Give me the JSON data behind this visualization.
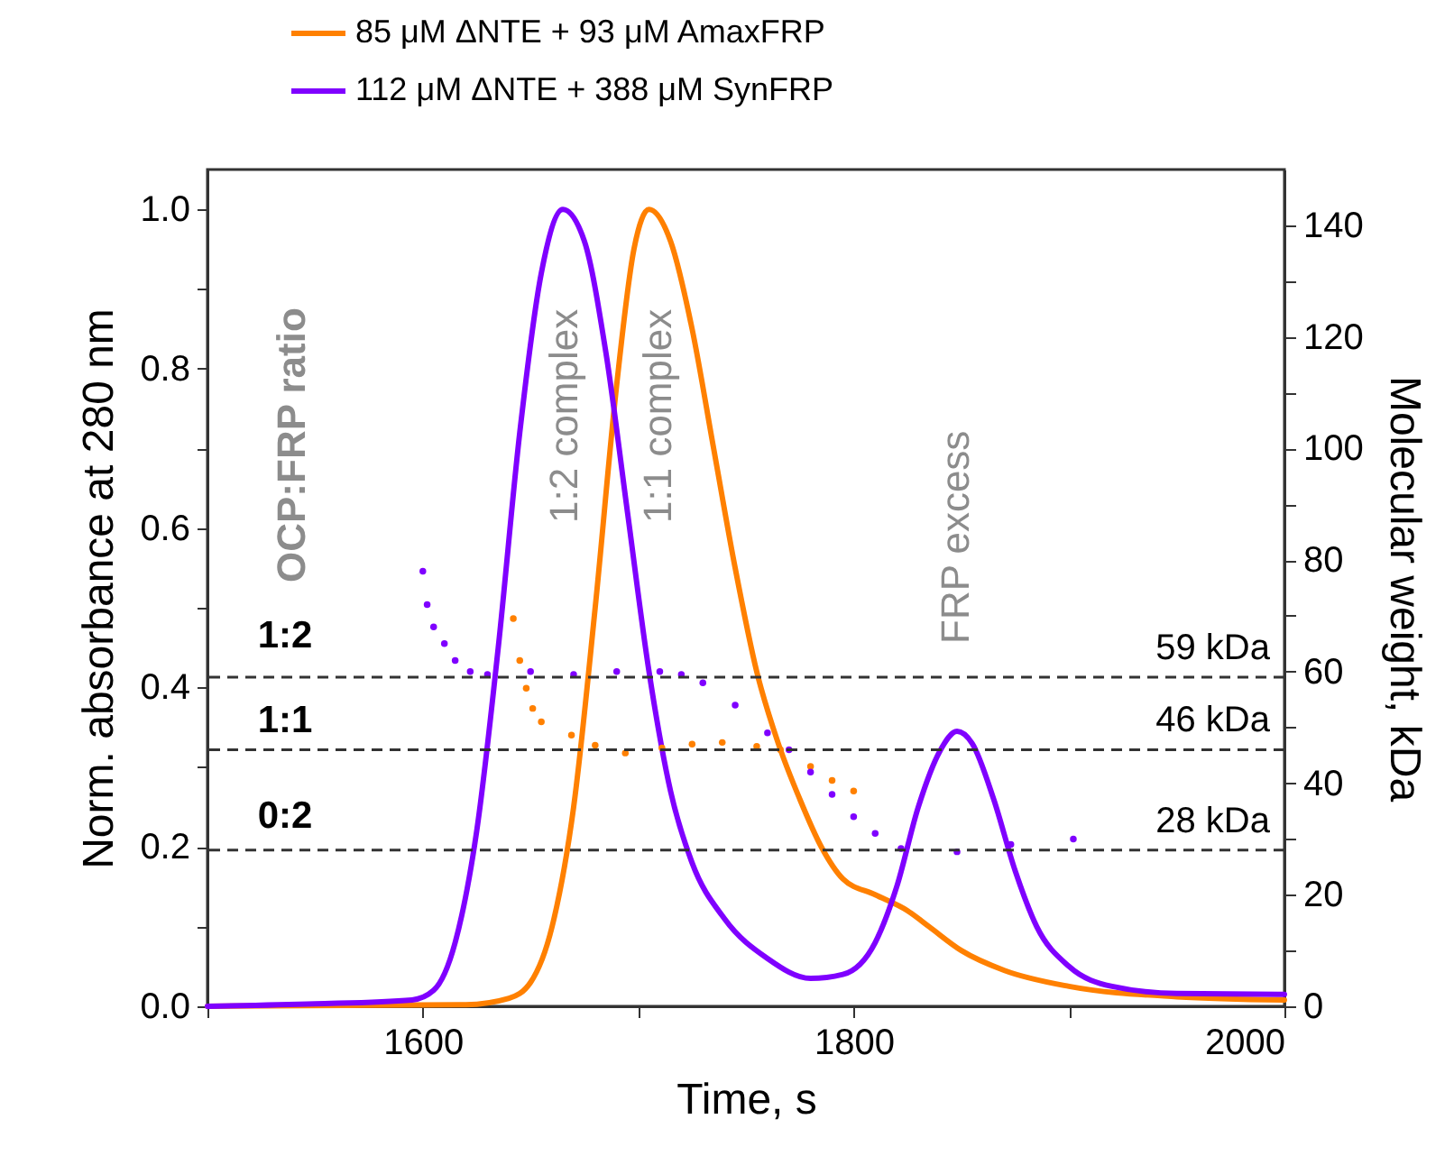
{
  "chart_data": {
    "type": "line",
    "xlabel": "Time, s",
    "ylabel": "Norm. absorbance at 280 nm",
    "y2label": "Molecular weight, kDa",
    "xlim": [
      1500,
      2000
    ],
    "xticks": [
      {
        "value": 1500,
        "label": null
      },
      1600,
      {
        "value": 1700,
        "label": null
      },
      1800,
      {
        "value": 1900,
        "label": null
      },
      2000
    ],
    "ylim": [
      0,
      1.05
    ],
    "yticks": [
      {
        "value": 0,
        "label": "0.0"
      },
      {
        "value": 0.1,
        "label": null
      },
      0.2,
      {
        "value": 0.3,
        "label": null
      },
      0.4,
      {
        "value": 0.5,
        "label": null
      },
      0.6,
      {
        "value": 0.7,
        "label": null
      },
      0.8,
      {
        "value": 0.9,
        "label": null
      },
      {
        "value": 1,
        "label": "1.0"
      }
    ],
    "y2lim": [
      0,
      150
    ],
    "y2ticks": [
      0,
      {
        "value": 10,
        "label": null
      },
      20,
      {
        "value": 30,
        "label": null
      },
      40,
      {
        "value": 50,
        "label": null
      },
      60,
      {
        "value": 70,
        "label": null
      },
      80,
      {
        "value": 90,
        "label": null
      },
      100,
      {
        "value": 110,
        "label": null
      },
      120,
      {
        "value": 130,
        "label": null
      },
      140
    ],
    "legend": "top",
    "grid": false,
    "series": [
      {
        "name": "85 μM ΔNTE + 93 μM AmaxFRP",
        "color": "#ff8000",
        "x": [
          1500,
          1620,
          1640,
          1650,
          1660,
          1670,
          1680,
          1690,
          1698,
          1705,
          1715,
          1725,
          1735,
          1745,
          1755,
          1765,
          1775,
          1785,
          1795,
          1810,
          1825,
          1835,
          1850,
          1870,
          1900,
          1950,
          2000
        ],
        "values": [
          0,
          0.002,
          0.01,
          0.03,
          0.1,
          0.25,
          0.5,
          0.78,
          0.95,
          1.0,
          0.96,
          0.85,
          0.7,
          0.55,
          0.42,
          0.33,
          0.26,
          0.2,
          0.16,
          0.14,
          0.12,
          0.1,
          0.07,
          0.045,
          0.025,
          0.012,
          0.008
        ]
      },
      {
        "name": "112 μM ΔNTE + 388 μM SynFRP",
        "color": "#7f00ff",
        "x": [
          1500,
          1550,
          1595,
          1605,
          1615,
          1625,
          1635,
          1645,
          1655,
          1665,
          1675,
          1685,
          1695,
          1705,
          1715,
          1725,
          1740,
          1760,
          1780,
          1795,
          1810,
          1820,
          1830,
          1840,
          1848,
          1855,
          1865,
          1875,
          1885,
          1900,
          1920,
          1950,
          2000
        ],
        "values": [
          0,
          0.003,
          0.008,
          0.02,
          0.08,
          0.22,
          0.45,
          0.72,
          0.92,
          1.0,
          0.96,
          0.82,
          0.62,
          0.42,
          0.27,
          0.18,
          0.11,
          0.06,
          0.035,
          0.04,
          0.08,
          0.15,
          0.25,
          0.32,
          0.345,
          0.33,
          0.26,
          0.17,
          0.1,
          0.05,
          0.025,
          0.016,
          0.015
        ]
      },
      {
        "type": "scatter",
        "axis": "y2",
        "color": "#ff8000",
        "x": [
          1642,
          1645,
          1648,
          1651,
          1655,
          1669,
          1680,
          1694,
          1711,
          1725,
          1739,
          1755,
          1766,
          1780,
          1790,
          1800
        ],
        "values": [
          69.5,
          62,
          57,
          53.4,
          51,
          48.6,
          46.8,
          45.4,
          46.3,
          47,
          47.3,
          46.6,
          46,
          43,
          40.5,
          38.6
        ]
      },
      {
        "type": "scatter",
        "axis": "y2",
        "color": "#7f00ff",
        "x": [
          1600,
          1602,
          1605,
          1610,
          1615,
          1622,
          1630,
          1650,
          1670,
          1690,
          1710,
          1720,
          1730,
          1745,
          1760,
          1770,
          1780,
          1790,
          1800,
          1810,
          1822,
          1848,
          1873,
          1902
        ],
        "values": [
          78,
          72,
          68,
          65,
          62,
          60,
          59.5,
          60,
          59.5,
          60,
          60,
          59.5,
          58,
          54,
          49,
          46,
          42,
          38,
          34,
          31,
          28.3,
          27.7,
          29,
          30
        ]
      }
    ],
    "ref_lines": [
      {
        "axis": "y2",
        "value": 59,
        "label": "59 kDa",
        "line_style": "dashed"
      },
      {
        "axis": "y2",
        "value": 46,
        "label": "46 kDa",
        "line_style": "dashed"
      },
      {
        "axis": "y2",
        "value": 28,
        "label": "28 kDa",
        "line_style": "dashed"
      }
    ],
    "annotations": [
      "1:2 complex",
      "1:1 complex",
      "FRP excess",
      "OCP:FRP ratio",
      "1:2",
      "1:1",
      "0:2"
    ]
  }
}
